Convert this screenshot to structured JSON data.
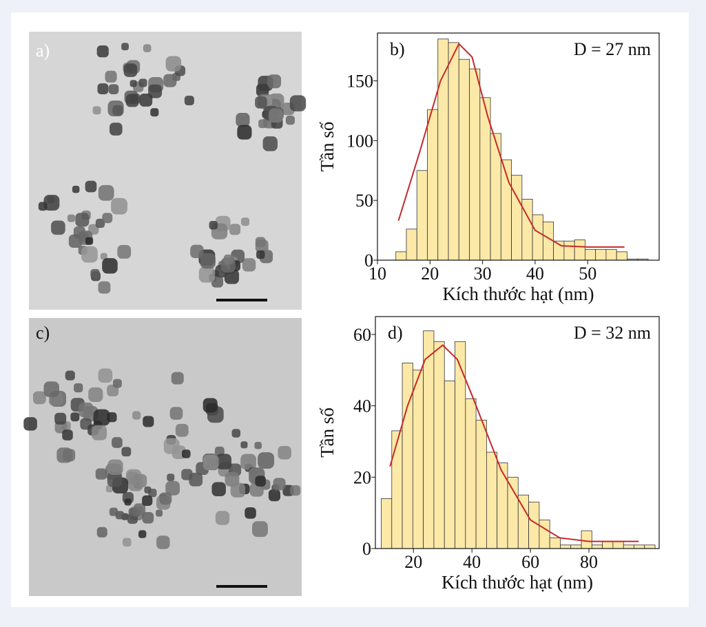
{
  "panels": [
    {
      "label": "a)"
    },
    {
      "label": "c)"
    }
  ],
  "chart_data": [
    {
      "type": "histogram",
      "label": "b)",
      "annotation": "D = 27 nm",
      "ylabel": "Tần số",
      "xlabel": "Kích thước hạt (nm)",
      "bins": [
        13.5,
        15.5,
        17.5,
        19.5,
        21.5,
        23.5,
        25.5,
        27.5,
        29.5,
        31.5,
        33.5,
        35.5,
        37.5,
        39.5,
        41.5,
        43.5,
        45.5,
        47.5,
        49.5,
        51.5,
        53.5,
        55.5,
        57.5,
        59.5,
        61.5
      ],
      "values": [
        7,
        26,
        75,
        126,
        185,
        182,
        168,
        160,
        136,
        106,
        84,
        71,
        51,
        38,
        32,
        16,
        16,
        17,
        9,
        9,
        9,
        7,
        1,
        1
      ],
      "color": "#fce9a8",
      "edgecolor": "#333333",
      "xlim": [
        10,
        63.6
      ],
      "ylim": [
        0,
        190
      ],
      "xticks": [
        10,
        20,
        30,
        40,
        50
      ],
      "yticks": [
        0,
        50,
        100,
        150
      ],
      "fit": {
        "color": "#c62828",
        "x": [
          14,
          18,
          22,
          25.5,
          28,
          31,
          35,
          40,
          45,
          50,
          57
        ],
        "y": [
          33,
          90,
          150,
          181,
          170,
          120,
          65,
          25,
          12,
          11,
          11
        ]
      }
    },
    {
      "type": "histogram",
      "label": "d)",
      "annotation": "D = 32 nm",
      "ylabel": "Tần số",
      "xlabel": "Kích thước hạt (nm)",
      "bins": [
        9,
        12.6,
        16.2,
        19.8,
        23.4,
        27,
        30.6,
        34.2,
        37.8,
        41.4,
        45,
        48.6,
        52.2,
        55.8,
        59.4,
        63,
        66.6,
        70.2,
        73.8,
        77.4,
        81,
        84.6,
        88.2,
        91.8,
        95.4,
        99,
        102.6
      ],
      "values": [
        14,
        33,
        52,
        50,
        61,
        58,
        47,
        58,
        42,
        36,
        27,
        24,
        20,
        15,
        13,
        8,
        3,
        1,
        1,
        5,
        1,
        2,
        2,
        1,
        1,
        1
      ],
      "color": "#fce9a8",
      "edgecolor": "#333333",
      "xlim": [
        7,
        104
      ],
      "ylim": [
        0,
        65
      ],
      "xticks": [
        20,
        40,
        60,
        80
      ],
      "yticks": [
        0,
        20,
        40,
        60
      ],
      "fit": {
        "color": "#c62828",
        "x": [
          12,
          18,
          24,
          30,
          35,
          40,
          50,
          60,
          70,
          80,
          97
        ],
        "y": [
          23,
          40,
          53,
          57,
          53,
          43,
          22,
          8,
          3,
          2,
          2
        ]
      }
    }
  ]
}
